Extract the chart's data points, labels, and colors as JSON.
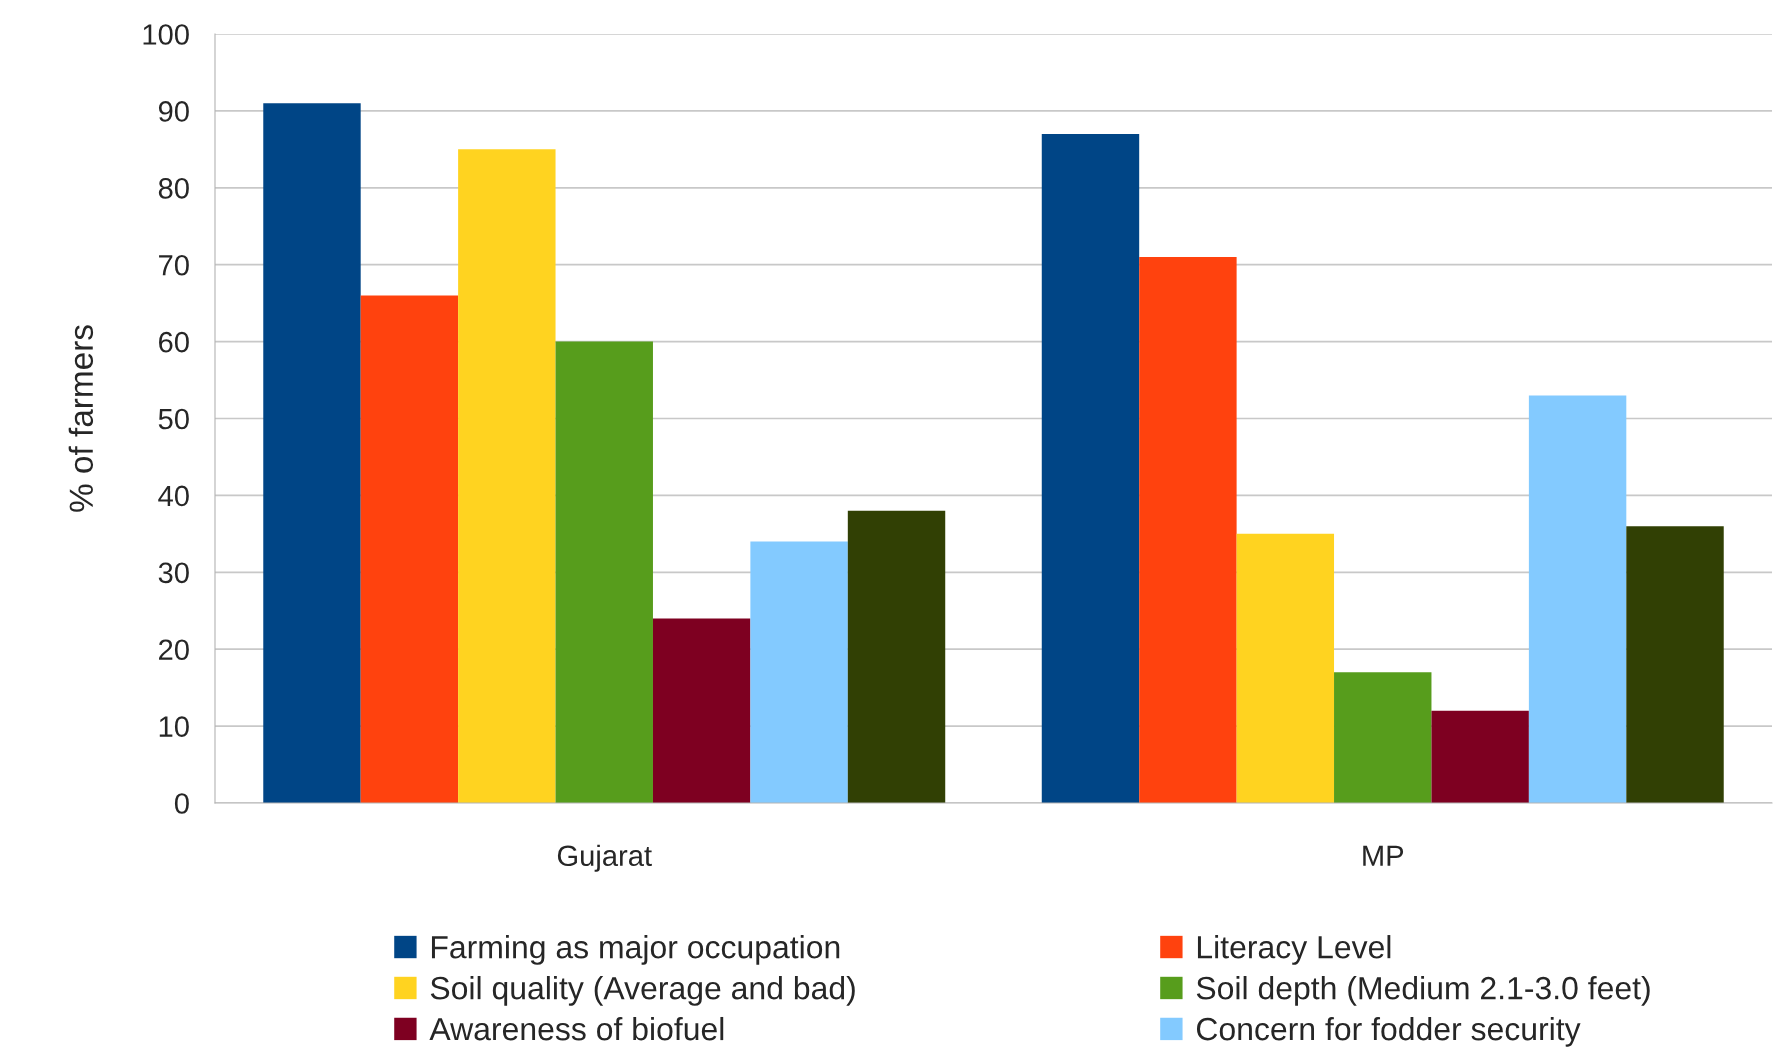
{
  "chart_data": {
    "type": "bar",
    "ylabel": "% of farmers",
    "categories": [
      "Gujarat",
      "MP"
    ],
    "series": [
      {
        "name": "Farming as major occupation",
        "color": "#004586",
        "values": [
          91,
          87
        ]
      },
      {
        "name": "Literacy Level",
        "color": "#ff420e",
        "values": [
          66,
          71
        ]
      },
      {
        "name": "Soil quality (Average and bad)",
        "color": "#ffd320",
        "values": [
          85,
          35
        ]
      },
      {
        "name": "Soil depth (Medium 2.1-3.0 feet)",
        "color": "#579d1c",
        "values": [
          60,
          17
        ]
      },
      {
        "name": "Awareness of biofuel",
        "color": "#7e0021",
        "values": [
          24,
          12
        ]
      },
      {
        "name": "Concern for fodder security",
        "color": "#83caff",
        "values": [
          34,
          53
        ]
      },
      {
        "color": "#314004",
        "values": [
          38,
          36
        ]
      }
    ],
    "ylim": [
      0,
      100
    ],
    "yticks": [
      0,
      10,
      20,
      30,
      40,
      50,
      60,
      70,
      80,
      90,
      100
    ],
    "grid": "y",
    "legend": "bottom"
  }
}
